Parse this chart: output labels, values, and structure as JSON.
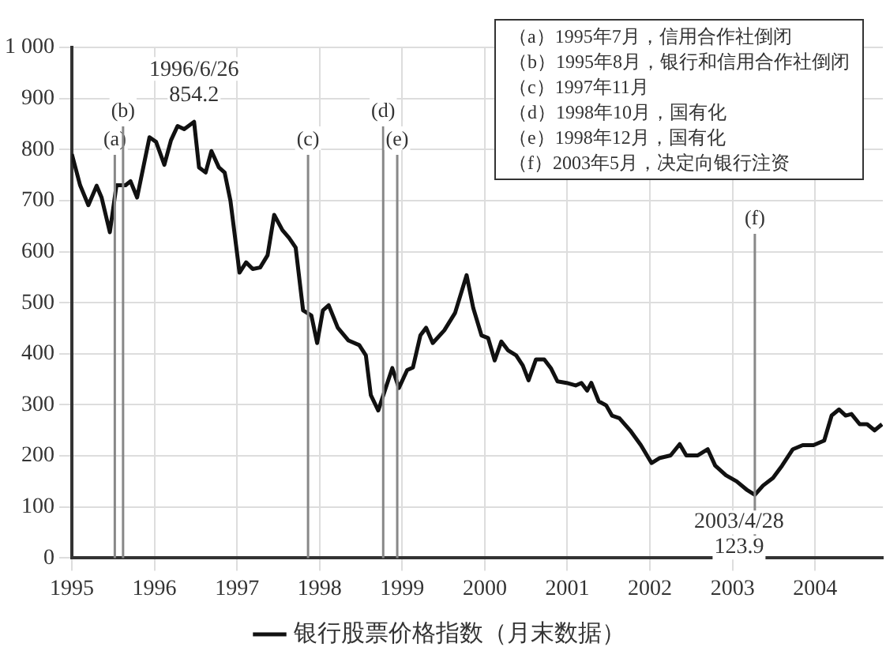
{
  "chart_data": {
    "type": "line",
    "xlim": [
      1995,
      2004.82
    ],
    "xticks": [
      1995,
      1996,
      1997,
      1998,
      1999,
      2000,
      2001,
      2002,
      2003,
      2004
    ],
    "ylim": [
      0,
      1000
    ],
    "yticks": [
      0,
      100,
      200,
      300,
      400,
      500,
      600,
      700,
      800,
      900,
      {
        "value": 1000,
        "label": "1 000"
      }
    ],
    "grid": true,
    "legend": "bottom",
    "marker": "none",
    "line_style": "solid",
    "series": [
      {
        "name": "银行股票价格指数（月末数据）",
        "color": "#111111",
        "x": [
          1995.0,
          1995.1,
          1995.2,
          1995.3,
          1995.36,
          1995.46,
          1995.54,
          1995.65,
          1995.71,
          1995.79,
          1995.94,
          1996.02,
          1996.12,
          1996.2,
          1996.28,
          1996.36,
          1996.48,
          1996.54,
          1996.62,
          1996.69,
          1996.78,
          1996.85,
          1996.92,
          1997.03,
          1997.11,
          1997.19,
          1997.28,
          1997.37,
          1997.45,
          1997.55,
          1997.63,
          1997.71,
          1997.8,
          1997.9,
          1997.97,
          1998.04,
          1998.11,
          1998.22,
          1998.35,
          1998.48,
          1998.56,
          1998.62,
          1998.71,
          1998.79,
          1998.88,
          1998.96,
          1999.06,
          1999.13,
          1999.22,
          1999.29,
          1999.37,
          1999.51,
          1999.64,
          1999.78,
          1999.86,
          1999.96,
          2000.04,
          2000.12,
          2000.2,
          2000.28,
          2000.38,
          2000.46,
          2000.53,
          2000.62,
          2000.72,
          2000.8,
          2000.88,
          2000.99,
          2001.1,
          2001.17,
          2001.24,
          2001.29,
          2001.38,
          2001.47,
          2001.54,
          2001.63,
          2001.76,
          2001.89,
          2002.02,
          2002.12,
          2002.25,
          2002.36,
          2002.44,
          2002.58,
          2002.7,
          2002.79,
          2002.92,
          2003.05,
          2003.17,
          2003.27,
          2003.37,
          2003.49,
          2003.6,
          2003.73,
          2003.85,
          2003.98,
          2004.11,
          2004.2,
          2004.29,
          2004.37,
          2004.44,
          2004.54,
          2004.63,
          2004.72,
          2004.81
        ],
        "values": [
          791,
          730,
          691,
          729,
          706,
          638,
          730,
          730,
          738,
          706,
          824,
          815,
          770,
          818,
          846,
          840,
          854.2,
          765,
          755,
          797,
          765,
          755,
          700,
          559,
          579,
          566,
          569,
          593,
          672,
          642,
          627,
          608,
          485,
          475,
          421,
          485,
          495,
          451,
          426,
          417,
          397,
          319,
          289,
          328,
          372,
          333,
          368,
          373,
          436,
          451,
          421,
          446,
          480,
          554,
          490,
          436,
          431,
          387,
          424,
          407,
          397,
          377,
          348,
          389,
          389,
          372,
          346,
          343,
          338,
          343,
          328,
          343,
          307,
          299,
          279,
          274,
          250,
          221,
          186,
          196,
          201,
          223,
          201,
          201,
          213,
          181,
          162,
          150,
          134,
          123.9,
          142,
          157,
          181,
          213,
          221,
          221,
          230,
          279,
          291,
          279,
          282,
          262,
          262,
          250,
          262
        ]
      }
    ],
    "ref_lines": [
      {
        "axis": "x",
        "value": 1995.52,
        "label": "(a)",
        "color": "#888888"
      },
      {
        "axis": "x",
        "value": 1995.62,
        "label": "(b)",
        "color": "#888888"
      },
      {
        "axis": "x",
        "value": 1997.86,
        "label": "(c)",
        "color": "#888888"
      },
      {
        "axis": "x",
        "value": 1998.77,
        "label": "(d)",
        "color": "#888888"
      },
      {
        "axis": "x",
        "value": 1998.94,
        "label": "(e)",
        "color": "#888888"
      },
      {
        "axis": "x",
        "value": 2003.27,
        "label": "(f)",
        "color": "#888888"
      }
    ],
    "annotations": [
      {
        "text": "1996/6/26\n854.2",
        "x": 1996.48,
        "y": 854.2
      },
      {
        "text": "2003/4/28\n123.9",
        "x": 2003.27,
        "y": 123.9
      },
      "（a）1995年7月，信用合作社倒闭",
      "（b）1995年8月，银行和信用合作社倒闭",
      "（c）1997年11月",
      "（d）1998年10月，国有化",
      "（e）1998年12月，国有化",
      "（f）2003年5月，决定向银行注资"
    ]
  }
}
